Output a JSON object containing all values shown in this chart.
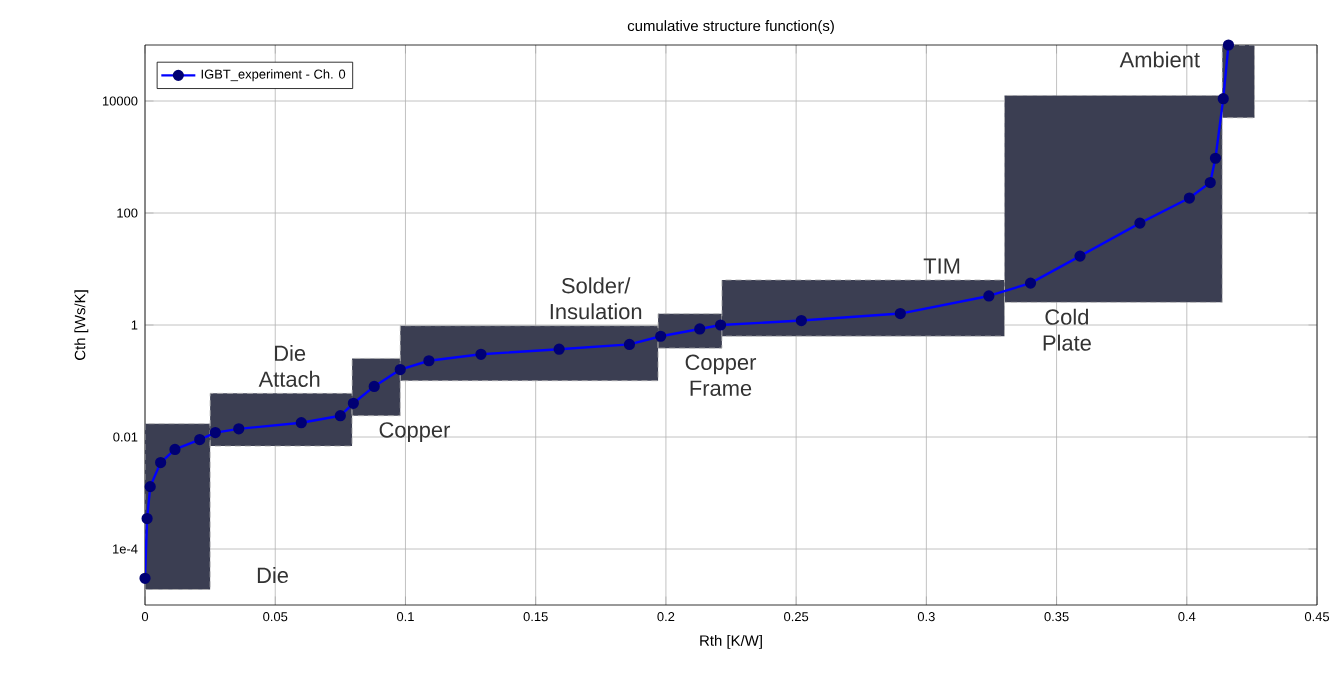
{
  "chart_data": {
    "type": "line",
    "title": "cumulative structure function(s)",
    "xlabel": "Rth  [K/W]",
    "ylabel": "Cth  [Ws/K]",
    "log": "y",
    "grid": true,
    "legend": "top left",
    "marker": "circle",
    "line_style": "solid",
    "xlim": [
      0,
      0.45
    ],
    "xticks": [
      0,
      0.05,
      0.1,
      0.15,
      0.2,
      0.25,
      0.3,
      0.35,
      0.4,
      0.45
    ],
    "ylim": [
      1e-05,
      100000.0
    ],
    "yticks": [
      {
        "value": 0.0001,
        "label": "1e-4"
      },
      0.01,
      1,
      100,
      10000
    ],
    "x": [
      0,
      0.0008,
      0.002,
      0.006,
      0.0115,
      0.021,
      0.027,
      0.036,
      0.06,
      0.075,
      0.08,
      0.088,
      0.098,
      0.109,
      0.129,
      0.159,
      0.186,
      0.198,
      0.213,
      0.221,
      0.252,
      0.29,
      0.324,
      0.34,
      0.359,
      0.382,
      0.401,
      0.409,
      0.411,
      0.414,
      0.416
    ],
    "series": [
      {
        "name": "IGBT_experiment - Ch. 0",
        "color": "#0000ff",
        "values": [
          3e-05,
          0.00035,
          0.0013,
          0.0035,
          0.006,
          0.009,
          0.012,
          0.014,
          0.018,
          0.024,
          0.04,
          0.08,
          0.16,
          0.23,
          0.3,
          0.37,
          0.45,
          0.63,
          0.85,
          1,
          1.2,
          1.6,
          3.3,
          5.6,
          17,
          66,
          185,
          350,
          950,
          11000,
          100000
        ]
      }
    ],
    "bands": [
      {
        "axis": "x",
        "from": 0,
        "to": 0.025,
        "label": "Die",
        "color": "#3b3e52"
      },
      {
        "axis": "x",
        "from": 0.025,
        "to": 0.0795,
        "label": "Die Attach",
        "color": "#3b3e52"
      },
      {
        "axis": "x",
        "from": 0.0795,
        "to": 0.098,
        "label": "Copper",
        "color": "#3b3e52"
      },
      {
        "axis": "x",
        "from": 0.098,
        "to": 0.197,
        "label": "Solder/ Insulation",
        "color": "#3b3e52"
      },
      {
        "axis": "x",
        "from": 0.197,
        "to": 0.2215,
        "label": "Copper Frame",
        "color": "#3b3e52"
      },
      {
        "axis": "x",
        "from": 0.2215,
        "to": 0.33,
        "label": "TIM",
        "color": "#3b3e52"
      },
      {
        "axis": "x",
        "from": 0.33,
        "to": 0.4136,
        "label": "Cold Plate",
        "color": "#3b3e52"
      },
      {
        "axis": "x",
        "from": 0.4136,
        "to": 0.426,
        "label": "Ambient",
        "color": "#3b3e52"
      }
    ]
  }
}
